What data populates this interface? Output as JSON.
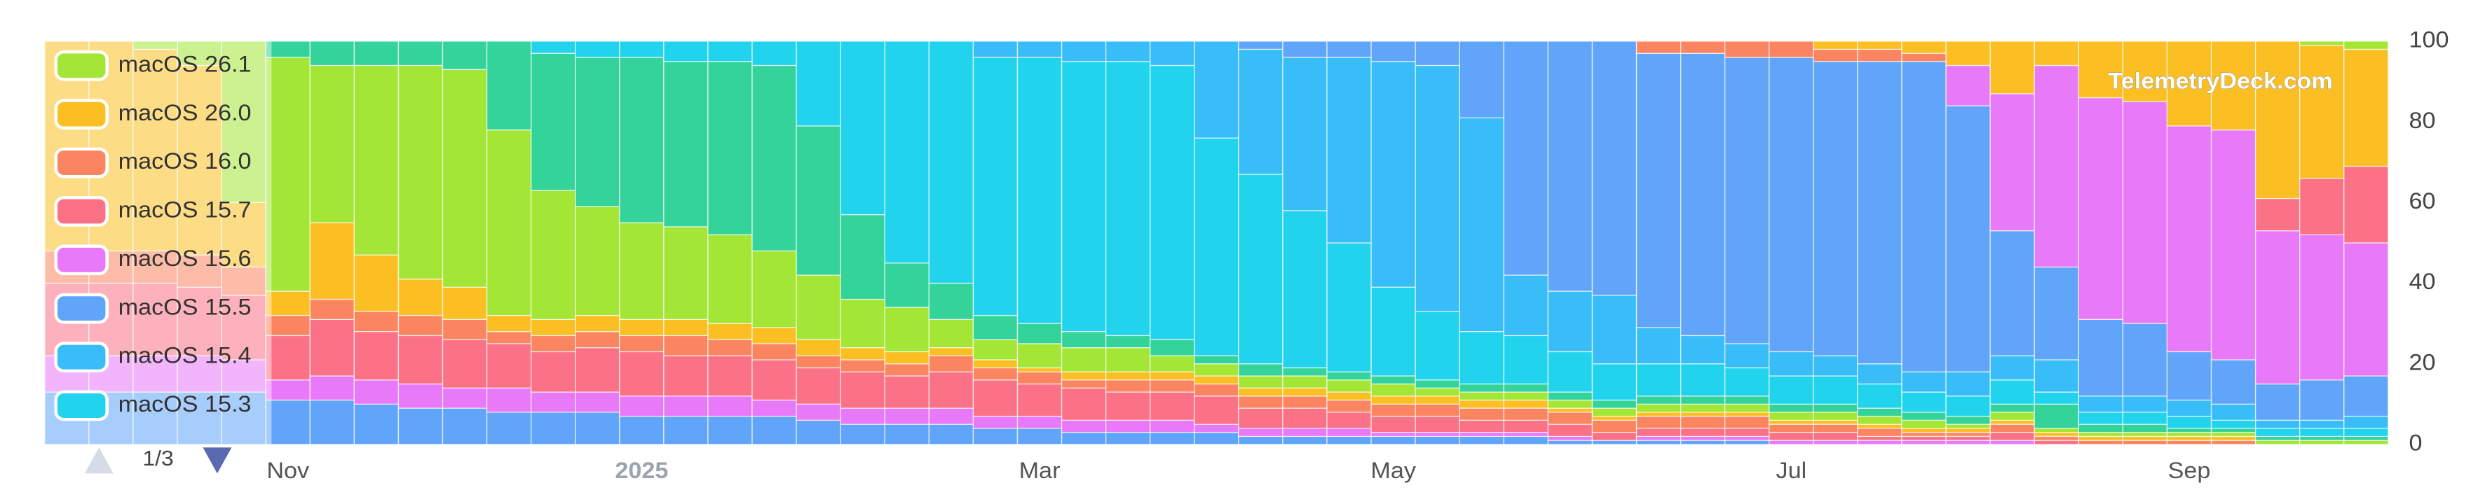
{
  "chart_data": {
    "type": "bar",
    "stacked": true,
    "watermark": "TelemetryDeck.com",
    "legend_page": "1/3",
    "legend": "left",
    "categories": [
      null,
      null,
      null,
      null,
      null,
      "Nov",
      null,
      null,
      null,
      null,
      null,
      null,
      null,
      "2025",
      null,
      null,
      null,
      null,
      null,
      null,
      null,
      null,
      "Mar",
      null,
      null,
      null,
      null,
      null,
      null,
      null,
      "May",
      null,
      null,
      null,
      null,
      null,
      null,
      null,
      null,
      "Jul",
      null,
      null,
      null,
      null,
      null,
      null,
      null,
      null,
      "Sep",
      null,
      null,
      null,
      null
    ],
    "ylim": [
      0,
      100
    ],
    "yticks": [
      0,
      20,
      40,
      60,
      80,
      100
    ],
    "series": [
      {
        "name": "macOS 26.1",
        "color": "#a3e635",
        "values": [
          0,
          0,
          0,
          0,
          0,
          0,
          0,
          0,
          0,
          0,
          0,
          0,
          0,
          0,
          0,
          0,
          0,
          0,
          0,
          0,
          0,
          0,
          0,
          0,
          0,
          0,
          0,
          0,
          0,
          0,
          0,
          0,
          0,
          0,
          0,
          0,
          0,
          0,
          0,
          0,
          0,
          0,
          0,
          0,
          0,
          0,
          0,
          0,
          0,
          0,
          0,
          1,
          2
        ]
      },
      {
        "name": "macOS 26.0",
        "color": "#fbbf24",
        "values": [
          0,
          0,
          0,
          0,
          0,
          0,
          0,
          0,
          0,
          0,
          0,
          0,
          0,
          0,
          0,
          0,
          0,
          0,
          0,
          0,
          0,
          0,
          0,
          0,
          0,
          0,
          0,
          0,
          0,
          0,
          0,
          0,
          0,
          0,
          0,
          0,
          0,
          0,
          0,
          0,
          2,
          2,
          3,
          6,
          13,
          6,
          14,
          15,
          21,
          22,
          39,
          33,
          29
        ]
      },
      {
        "name": "macOS 16.0",
        "color": "#fb8560",
        "values": [
          0,
          0,
          0,
          0,
          0,
          0,
          0,
          0,
          0,
          0,
          0,
          0,
          0,
          0,
          0,
          0,
          0,
          0,
          0,
          0,
          0,
          0,
          0,
          0,
          0,
          0,
          0,
          0,
          0,
          0,
          0,
          0,
          0,
          0,
          0,
          0,
          3,
          3,
          4,
          4,
          3,
          3,
          2,
          0,
          0,
          0,
          0,
          0,
          0,
          0,
          0,
          0,
          0
        ]
      },
      {
        "name": "macOS 15.7",
        "color": "#fb7185",
        "values": [
          0,
          0,
          0,
          0,
          0,
          0,
          0,
          0,
          0,
          0,
          0,
          0,
          0,
          0,
          0,
          0,
          0,
          0,
          0,
          0,
          0,
          0,
          0,
          0,
          0,
          0,
          0,
          0,
          0,
          0,
          0,
          0,
          0,
          0,
          0,
          0,
          0,
          0,
          0,
          0,
          0,
          0,
          0,
          0,
          0,
          0,
          0,
          0,
          0,
          0,
          8,
          14,
          19
        ]
      },
      {
        "name": "macOS 15.6",
        "color": "#e879f9",
        "values": [
          0,
          0,
          0,
          0,
          0,
          0,
          0,
          0,
          0,
          0,
          0,
          0,
          0,
          0,
          0,
          0,
          0,
          0,
          0,
          0,
          0,
          0,
          0,
          0,
          0,
          0,
          0,
          0,
          0,
          0,
          0,
          0,
          0,
          0,
          0,
          0,
          0,
          0,
          0,
          0,
          0,
          0,
          0,
          10,
          34,
          50,
          55,
          55,
          56,
          57,
          38,
          36,
          33
        ]
      },
      {
        "name": "macOS 15.5",
        "color": "#60a5fa",
        "values": [
          0,
          0,
          0,
          0,
          0,
          0,
          0,
          0,
          0,
          0,
          0,
          0,
          0,
          0,
          0,
          0,
          0,
          0,
          0,
          0,
          0,
          0,
          0,
          0,
          0,
          0,
          0,
          2,
          4,
          4,
          5,
          6,
          19,
          58,
          62,
          63,
          68,
          70,
          71,
          73,
          73,
          75,
          77,
          66,
          31,
          23,
          19,
          18,
          12,
          11,
          9,
          10,
          10
        ]
      },
      {
        "name": "macOS 15.4",
        "color": "#38bdf8",
        "values": [
          0,
          0,
          0,
          0,
          0,
          0,
          0,
          0,
          0,
          0,
          0,
          0,
          0,
          0,
          0,
          0,
          0,
          0,
          0,
          0,
          0,
          4,
          4,
          5,
          5,
          6,
          24,
          31,
          38,
          46,
          56,
          61,
          53,
          15,
          15,
          17,
          9,
          7,
          6,
          6,
          5,
          5,
          5,
          6,
          6,
          8,
          4,
          4,
          4,
          4,
          2,
          2,
          3
        ]
      },
      {
        "name": "macOS 15.3",
        "color": "#22d3ee",
        "values": [
          0,
          0,
          0,
          0,
          0,
          0,
          0,
          0,
          0,
          0,
          0,
          3,
          4,
          4,
          5,
          5,
          6,
          21,
          43,
          55,
          60,
          64,
          66,
          67,
          68,
          68,
          54,
          47,
          39,
          32,
          22,
          17,
          13,
          12,
          10,
          9,
          8,
          8,
          7,
          7,
          7,
          6,
          5,
          5,
          6,
          3,
          3,
          3,
          3,
          2,
          2,
          2,
          2
        ]
      },
      {
        "name": null,
        "color": "#34d399",
        "values": [
          0,
          0,
          0,
          0,
          0,
          4,
          6,
          6,
          6,
          7,
          22,
          34,
          37,
          41,
          41,
          43,
          46,
          37,
          21,
          11,
          9,
          6,
          5,
          4,
          3,
          4,
          2,
          3,
          2,
          2,
          2,
          2,
          2,
          2,
          2,
          2,
          2,
          2,
          2,
          2,
          2,
          2,
          2,
          2,
          2,
          6,
          2,
          2,
          1,
          1,
          1,
          1,
          1
        ]
      },
      {
        "name": null,
        "color": "#a3e635",
        "values": [
          0,
          0,
          2,
          6,
          40,
          58,
          39,
          47,
          53,
          54,
          46,
          32,
          27,
          24,
          23,
          22,
          19,
          16,
          12,
          11,
          7,
          5,
          6,
          6,
          6,
          4,
          3,
          3,
          3,
          3,
          3,
          2,
          2,
          2,
          2,
          2,
          2,
          2,
          2,
          2,
          2,
          2,
          2,
          1,
          2,
          1,
          1,
          1,
          1,
          1,
          1,
          1,
          1
        ]
      },
      {
        "name": null,
        "color": "#fbbf24",
        "values": [
          52,
          52,
          50,
          47,
          16,
          6,
          19,
          14,
          9,
          8,
          4,
          4,
          4,
          4,
          4,
          4,
          4,
          4,
          3,
          3,
          2,
          2,
          1,
          2,
          2,
          2,
          2,
          2,
          2,
          2,
          2,
          2,
          2,
          2,
          1,
          1,
          1,
          1,
          1,
          1,
          1,
          1,
          1,
          1,
          1,
          1,
          1,
          1,
          1,
          1,
          0,
          0,
          0
        ]
      },
      {
        "name": null,
        "color": "#fb8560",
        "values": [
          8,
          8,
          8,
          8,
          7,
          5,
          5,
          5,
          5,
          5,
          3,
          4,
          4,
          4,
          5,
          4,
          4,
          3,
          3,
          3,
          4,
          3,
          3,
          2,
          3,
          3,
          3,
          3,
          3,
          3,
          3,
          3,
          3,
          3,
          3,
          3,
          3,
          3,
          3,
          2,
          2,
          2,
          1,
          1,
          2,
          1,
          1,
          1,
          1,
          1,
          0,
          0,
          0
        ]
      },
      {
        "name": null,
        "color": "#fb7185",
        "values": [
          18,
          18,
          18,
          17,
          16,
          11,
          14,
          12,
          12,
          12,
          11,
          10,
          11,
          11,
          10,
          10,
          10,
          9,
          9,
          8,
          9,
          9,
          8,
          8,
          7,
          7,
          7,
          5,
          5,
          4,
          4,
          4,
          3,
          3,
          3,
          2,
          2,
          2,
          2,
          2,
          2,
          1,
          1,
          1,
          2,
          1,
          0,
          0,
          0,
          0,
          0,
          0,
          0
        ]
      },
      {
        "name": null,
        "color": "#e879f9",
        "values": [
          9,
          9,
          9,
          9,
          8,
          5,
          6,
          6,
          6,
          5,
          6,
          5,
          5,
          5,
          5,
          5,
          4,
          4,
          4,
          4,
          4,
          3,
          3,
          3,
          3,
          3,
          2,
          2,
          2,
          2,
          1,
          1,
          1,
          1,
          1,
          0,
          1,
          1,
          1,
          1,
          1,
          1,
          1,
          1,
          1,
          0,
          0,
          0,
          0,
          0,
          0,
          0,
          0
        ]
      },
      {
        "name": null,
        "color": "#60a5fa",
        "values": [
          13,
          13,
          13,
          13,
          13,
          11,
          11,
          10,
          9,
          9,
          8,
          8,
          8,
          7,
          7,
          7,
          7,
          6,
          5,
          5,
          5,
          4,
          4,
          3,
          3,
          3,
          3,
          2,
          2,
          2,
          2,
          2,
          2,
          2,
          1,
          1,
          1,
          1,
          1,
          0,
          0,
          0,
          0,
          0,
          0,
          0,
          0,
          0,
          0,
          0,
          0,
          0,
          0
        ]
      }
    ]
  }
}
